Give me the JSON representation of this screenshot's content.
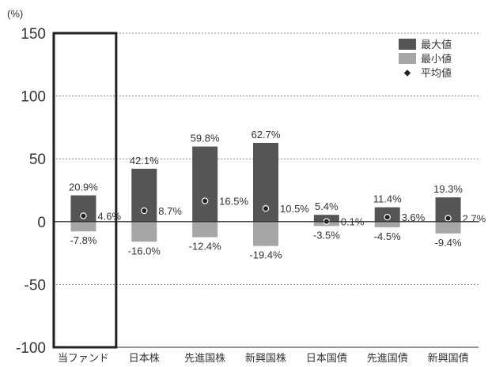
{
  "chart_data": {
    "type": "bar",
    "title": "",
    "y_unit": "(%)",
    "ylim": [
      -100,
      150
    ],
    "yticks": [
      150,
      100,
      50,
      0,
      -50,
      -100
    ],
    "grid": true,
    "legend_position": "top-right",
    "categories": [
      "当ファンド",
      "日本株",
      "先進国株",
      "新興国株",
      "日本国債",
      "先進国債",
      "新興国債"
    ],
    "highlighted_category": "当ファンド",
    "series": [
      {
        "name": "最大値",
        "kind": "bar",
        "color": "#555555",
        "values": [
          20.9,
          42.1,
          59.8,
          62.7,
          5.4,
          11.4,
          19.3
        ],
        "labels": [
          "20.9%",
          "42.1%",
          "59.8%",
          "62.7%",
          "5.4%",
          "11.4%",
          "19.3%"
        ]
      },
      {
        "name": "最小値",
        "kind": "bar",
        "color": "#a6a6a6",
        "values": [
          -7.8,
          -16.0,
          -12.4,
          -19.4,
          -3.5,
          -4.5,
          -9.4
        ],
        "labels": [
          "-7.8%",
          "-16.0%",
          "-12.4%",
          "-19.4%",
          "-3.5%",
          "-4.5%",
          "-9.4%"
        ]
      },
      {
        "name": "平均値",
        "kind": "point",
        "color": "#222222",
        "values": [
          4.6,
          8.7,
          16.5,
          10.5,
          0.1,
          3.6,
          2.7
        ],
        "labels": [
          "4.6%",
          "8.7%",
          "16.5%",
          "10.5%",
          "0.1%",
          "3.6%",
          "2.7%"
        ]
      }
    ]
  }
}
